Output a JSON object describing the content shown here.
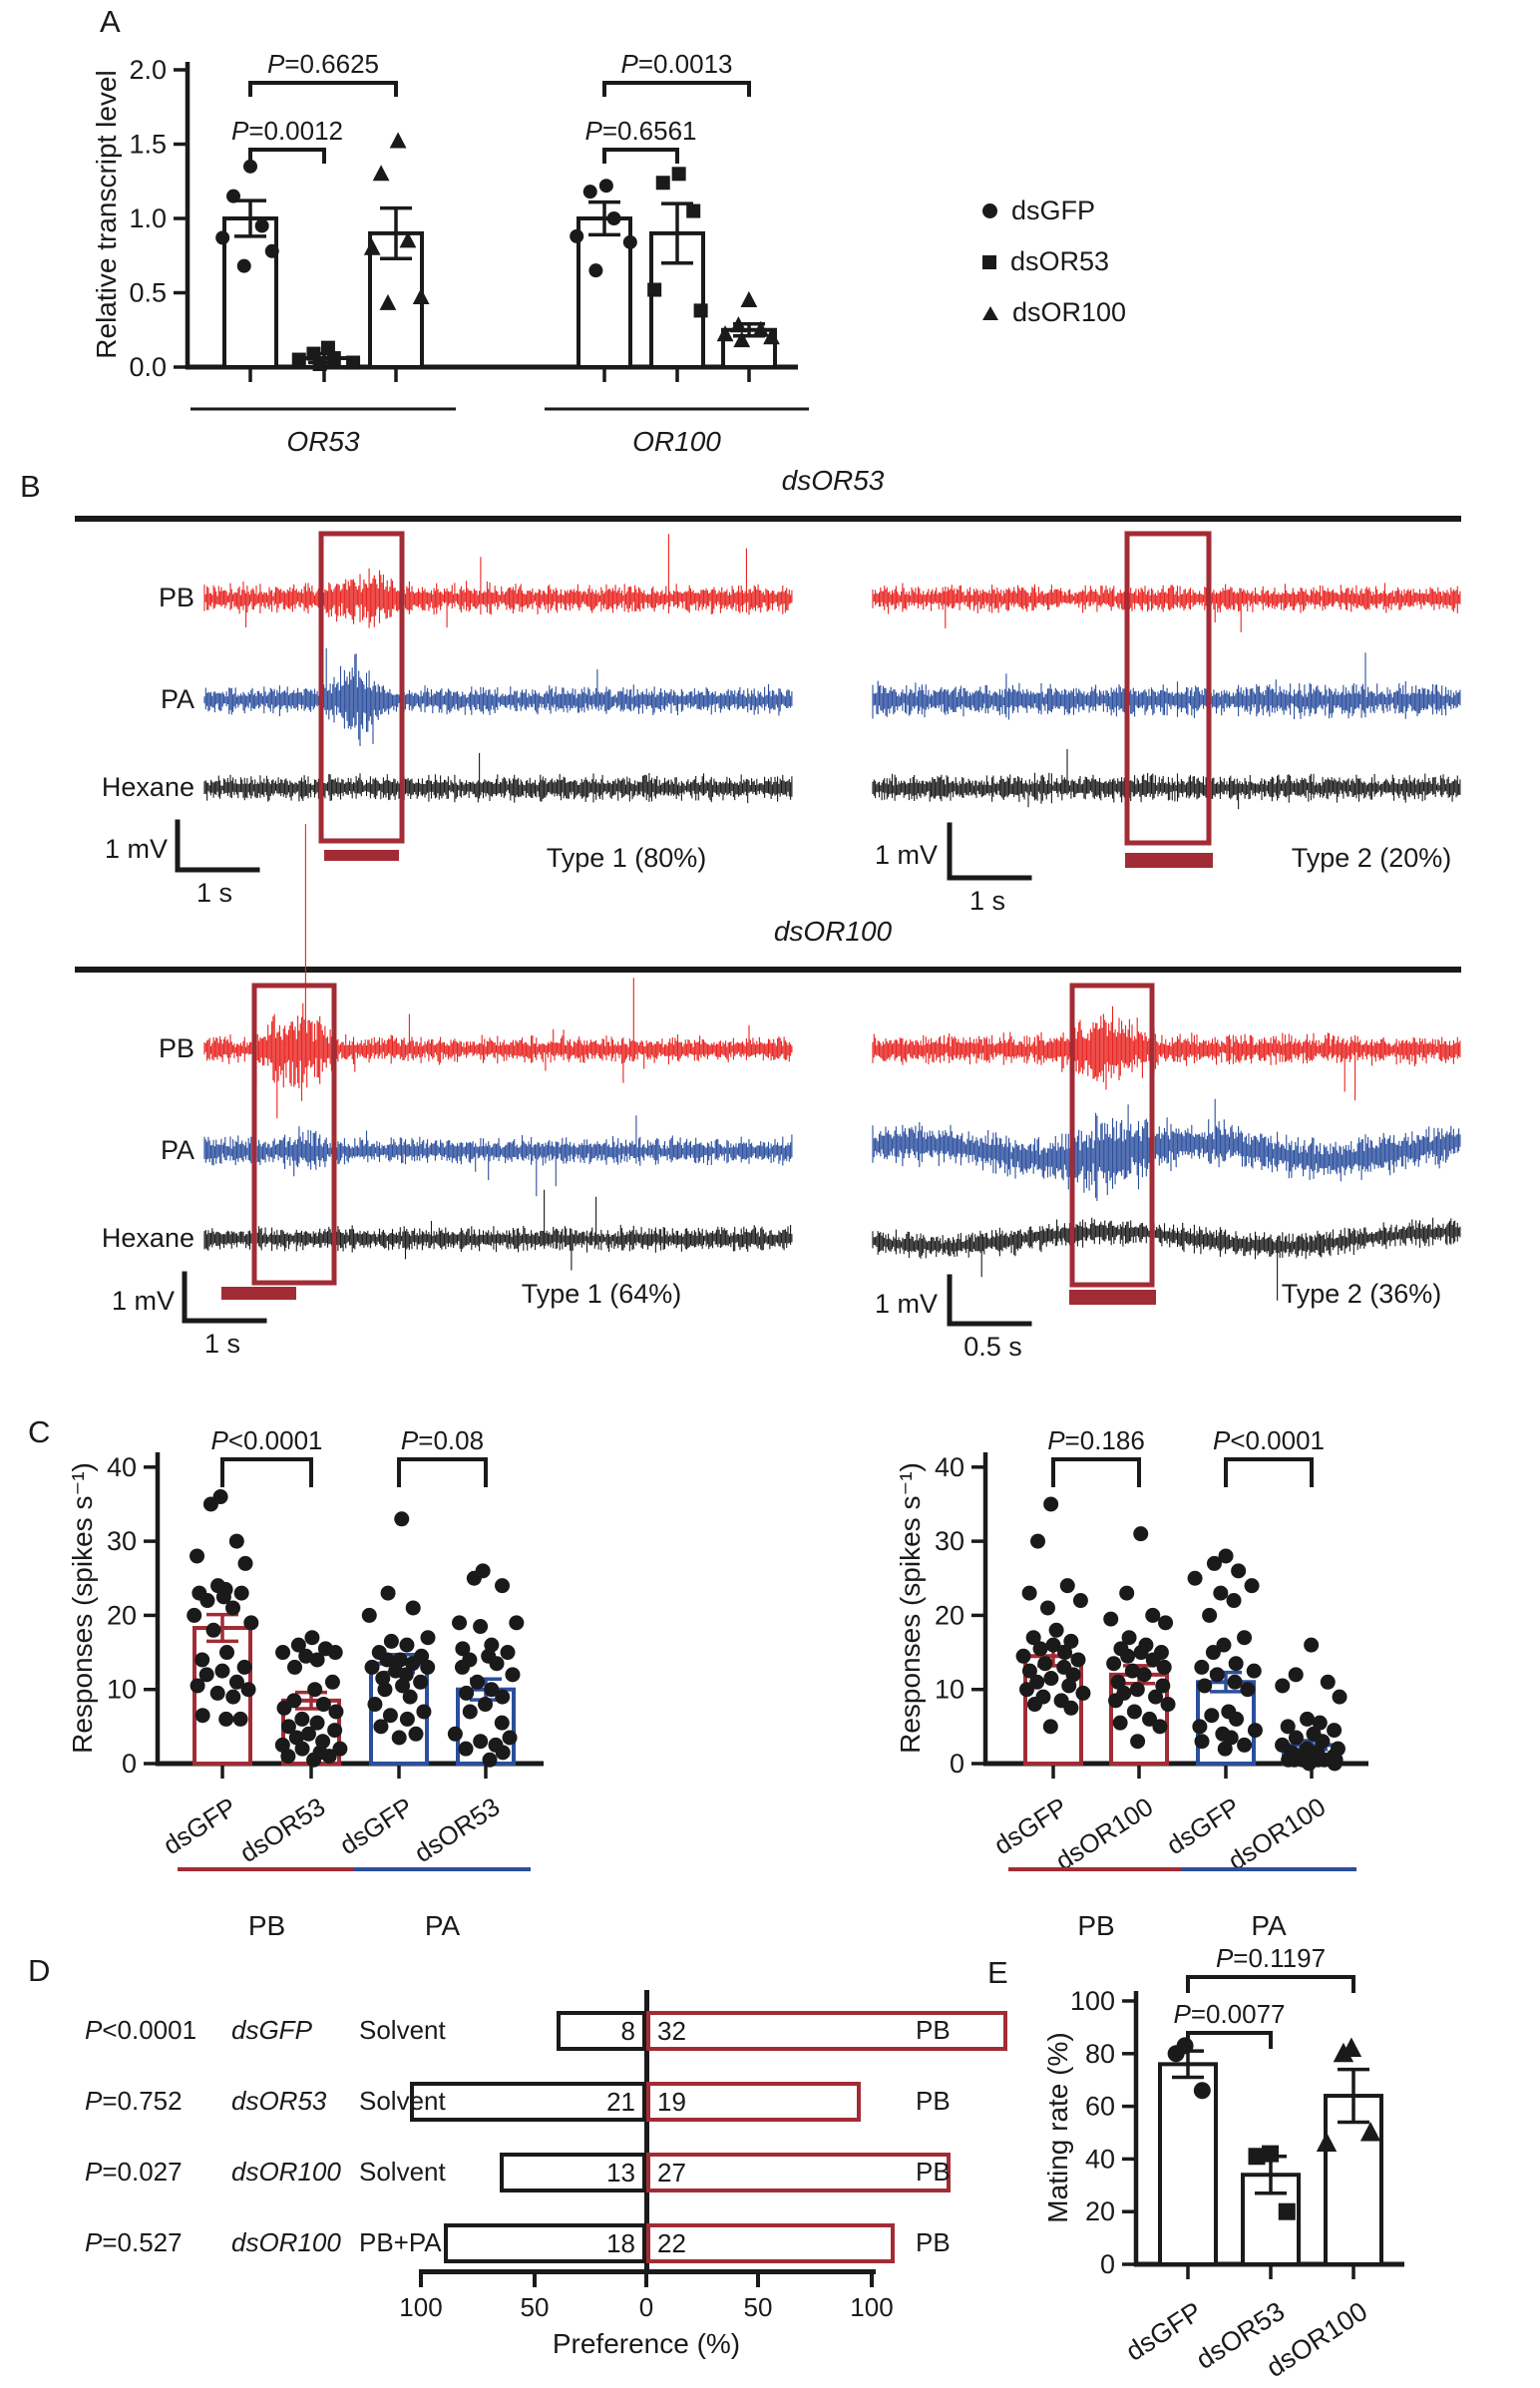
{
  "colors": {
    "dark_red": "#a22c35",
    "bright_red": "#e8231f",
    "blue": "#2b4f9e",
    "black": "#1a1a1a"
  },
  "panels": {
    "a": "A",
    "b": "B",
    "c": "C",
    "d": "D",
    "e": "E"
  },
  "legend": {
    "items": [
      {
        "marker": "circle",
        "label": "dsGFP"
      },
      {
        "marker": "square",
        "label": "dsOR53"
      },
      {
        "marker": "triangle",
        "label": "dsOR100"
      }
    ]
  },
  "panel_b": {
    "sections": [
      {
        "title": "dsOR53",
        "trace_labels": [
          "PB",
          "PA",
          "Hexane"
        ],
        "left": {
          "scale_v": "1 mV",
          "scale_h": "1 s",
          "caption": "Type 1 (80%)"
        },
        "right": {
          "scale_v": "1 mV",
          "scale_h": "1 s",
          "caption": "Type 2 (20%)"
        }
      },
      {
        "title": "dsOR100",
        "trace_labels": [
          "PB",
          "PA",
          "Hexane"
        ],
        "left": {
          "scale_v": "1 mV",
          "scale_h": "1 s",
          "caption": "Type 1 (64%)"
        },
        "right": {
          "scale_v": "1 mV",
          "scale_h": "0.5 s",
          "caption": "Type 2 (36%)"
        }
      }
    ]
  },
  "chart_data": [
    {
      "id": "panel_a",
      "type": "bar",
      "ylabel": "Relative transcript level",
      "ylim": [
        0,
        2.0
      ],
      "yticks": [
        "0.0",
        "0.5",
        "1.0",
        "1.5",
        "2.0"
      ],
      "xgroups": [
        {
          "label": "OR53",
          "bars": [
            0,
            2
          ]
        },
        {
          "label": "OR100",
          "bars": [
            3,
            5
          ]
        }
      ],
      "bars": [
        {
          "group": "OR53",
          "treatment": "dsGFP",
          "marker": "circle",
          "mean": 1.0,
          "sem": 0.12,
          "points": [
            1.35,
            1.15,
            0.95,
            0.87,
            0.78,
            0.68
          ]
        },
        {
          "group": "OR53",
          "treatment": "dsOR53",
          "marker": "square",
          "mean": 0.06,
          "sem": 0.03,
          "points": [
            0.13,
            0.09,
            0.06,
            0.05,
            0.03,
            0.02
          ]
        },
        {
          "group": "OR53",
          "treatment": "dsOR100",
          "marker": "triangle",
          "mean": 0.9,
          "sem": 0.17,
          "points": [
            1.52,
            1.3,
            0.85,
            0.8,
            0.47,
            0.43
          ]
        },
        {
          "group": "OR100",
          "treatment": "dsGFP",
          "marker": "circle",
          "mean": 1.0,
          "sem": 0.11,
          "points": [
            1.22,
            1.18,
            1.0,
            0.88,
            0.84,
            0.65
          ]
        },
        {
          "group": "OR100",
          "treatment": "dsOR53",
          "marker": "square",
          "mean": 0.9,
          "sem": 0.2,
          "points": [
            1.3,
            1.24,
            1.05,
            0.52,
            0.38
          ]
        },
        {
          "group": "OR100",
          "treatment": "dsOR100",
          "marker": "triangle",
          "mean": 0.25,
          "sem": 0.04,
          "points": [
            0.45,
            0.28,
            0.25,
            0.22,
            0.2,
            0.18
          ]
        }
      ],
      "pvalues": [
        {
          "label": "P=0.0012",
          "bars": [
            0,
            1
          ],
          "level": 1
        },
        {
          "label": "P=0.6625",
          "bars": [
            0,
            2
          ],
          "level": 2
        },
        {
          "label": "P=0.6561",
          "bars": [
            3,
            4
          ],
          "level": 1
        },
        {
          "label": "P=0.0013",
          "bars": [
            3,
            5
          ],
          "level": 2
        }
      ]
    },
    {
      "id": "panel_c_left",
      "type": "bar",
      "ylabel": "Responses (spikes s⁻¹)",
      "ylim": [
        0,
        40
      ],
      "yticks": [
        "0",
        "10",
        "20",
        "30",
        "40"
      ],
      "bars": [
        {
          "group": "PB",
          "treatment": "dsGFP",
          "marker": "circle",
          "mean": 18.3,
          "sem": 1.8,
          "points": [
            36,
            35,
            30,
            28,
            27,
            24,
            23.5,
            23,
            23,
            22.5,
            22,
            21,
            20,
            19,
            18,
            15,
            14,
            13,
            12.5,
            12,
            11,
            10.5,
            10,
            9.5,
            9,
            6.5,
            6,
            6
          ]
        },
        {
          "group": "PB",
          "treatment": "dsOR53",
          "marker": "circle",
          "mean": 8.5,
          "sem": 1.1,
          "points": [
            17,
            16,
            15.5,
            15,
            15,
            14.5,
            14,
            13,
            11,
            10,
            8.5,
            8,
            7.5,
            7,
            6,
            5.5,
            5,
            4.5,
            4,
            3.5,
            3,
            2.5,
            2,
            2,
            1.5,
            1,
            1,
            0.5
          ]
        },
        {
          "group": "PA",
          "treatment": "dsGFP",
          "marker": "circle",
          "mean": 13.5,
          "sem": 1.2,
          "points": [
            33,
            23,
            21,
            20,
            17,
            16.5,
            16,
            15,
            14.5,
            14,
            14,
            13.5,
            13,
            13,
            12.5,
            12,
            11.5,
            11,
            10.5,
            10,
            9,
            8,
            7,
            6.5,
            6,
            5,
            4,
            3.5
          ]
        },
        {
          "group": "PA",
          "treatment": "dsOR53",
          "marker": "circle",
          "mean": 10,
          "sem": 1.4,
          "points": [
            26,
            25,
            24,
            19,
            19,
            18.5,
            16,
            15.5,
            15,
            14.5,
            14,
            13.5,
            13,
            12,
            11,
            10,
            9.5,
            9,
            8,
            7,
            5.5,
            4,
            3.5,
            3,
            2.5,
            2,
            1.5,
            0.5
          ]
        }
      ],
      "pvalues": [
        {
          "label": "P<0.0001",
          "bars": [
            0,
            1
          ],
          "level": 1
        },
        {
          "label": "P=0.08",
          "bars": [
            2,
            3
          ],
          "level": 1
        }
      ],
      "group_lines": [
        {
          "label": "PB",
          "color": "dark_red",
          "bars": [
            0,
            1
          ]
        },
        {
          "label": "PA",
          "color": "blue",
          "bars": [
            2,
            3
          ]
        }
      ]
    },
    {
      "id": "panel_c_right",
      "type": "bar",
      "ylabel": "Responses (spikes s⁻¹)",
      "ylim": [
        0,
        40
      ],
      "yticks": [
        "0",
        "10",
        "20",
        "30",
        "40"
      ],
      "bars": [
        {
          "group": "PB",
          "treatment": "dsGFP",
          "marker": "circle",
          "mean": 14.5,
          "sem": 1.3,
          "points": [
            35,
            30,
            24,
            23,
            22,
            21,
            18,
            17,
            16.5,
            16,
            15.5,
            15,
            14.5,
            14,
            13.5,
            13,
            12.5,
            12,
            11.5,
            11,
            10.5,
            10,
            9.5,
            9,
            8.5,
            8,
            7.5,
            5
          ]
        },
        {
          "group": "PB",
          "treatment": "dsOR100",
          "marker": "circle",
          "mean": 12,
          "sem": 1.2,
          "points": [
            31,
            23,
            20,
            19.5,
            19,
            17,
            16,
            15.5,
            15,
            15,
            14.5,
            14,
            13.5,
            13,
            12.5,
            12,
            11,
            10.5,
            10,
            9.5,
            9,
            8.5,
            8,
            7,
            6,
            5.5,
            5,
            3
          ]
        },
        {
          "group": "PA",
          "treatment": "dsGFP",
          "marker": "circle",
          "mean": 11,
          "sem": 1.3,
          "points": [
            28,
            27,
            26,
            25,
            24,
            23,
            22,
            20,
            17,
            16,
            15,
            13.5,
            13,
            12.5,
            12,
            11,
            10.5,
            10,
            7,
            6.5,
            6,
            5,
            4.5,
            4,
            3.5,
            3,
            2.5,
            2
          ]
        },
        {
          "group": "PA",
          "treatment": "dsOR100",
          "marker": "circle",
          "mean": 2.5,
          "sem": 0.6,
          "points": [
            16,
            12,
            11,
            10.5,
            9,
            6,
            5.5,
            5,
            4.5,
            4,
            3.5,
            3,
            2.5,
            2,
            2,
            1.5,
            1.5,
            1,
            1,
            1,
            0.5,
            0.5,
            0.5,
            0.5,
            0.5,
            0.5,
            0,
            0
          ]
        }
      ],
      "pvalues": [
        {
          "label": "P=0.186",
          "bars": [
            0,
            1
          ],
          "level": 1
        },
        {
          "label": "P<0.0001",
          "bars": [
            2,
            3
          ],
          "level": 1
        }
      ],
      "group_lines": [
        {
          "label": "PB",
          "color": "dark_red",
          "bars": [
            0,
            1
          ]
        },
        {
          "label": "PA",
          "color": "blue",
          "bars": [
            2,
            3
          ]
        }
      ]
    },
    {
      "id": "panel_d",
      "type": "diverging_bar",
      "xlabel": "Preference (%)",
      "xticks": [
        "100",
        "50",
        "0",
        "50",
        "100"
      ],
      "rows": [
        {
          "p": "P<0.0001",
          "treatment": "dsGFP",
          "option": "Solvent",
          "left_count": 8,
          "right_count": 32,
          "right_option": "PB"
        },
        {
          "p": "P=0.752",
          "treatment": "dsOR53",
          "option": "Solvent",
          "left_count": 21,
          "right_count": 19,
          "right_option": "PB"
        },
        {
          "p": "P=0.027",
          "treatment": "dsOR100",
          "option": "Solvent",
          "left_count": 13,
          "right_count": 27,
          "right_option": "PB"
        },
        {
          "p": "P=0.527",
          "treatment": "dsOR100",
          "option": "PB+PA",
          "left_count": 18,
          "right_count": 22,
          "right_option": "PB"
        }
      ]
    },
    {
      "id": "panel_e",
      "type": "bar",
      "ylabel": "Mating rate (%)",
      "ylim": [
        0,
        100
      ],
      "yticks": [
        "0",
        "20",
        "40",
        "60",
        "80",
        "100"
      ],
      "bars": [
        {
          "label": "dsGFP",
          "marker": "circle",
          "mean": 76,
          "sem": 5,
          "points": [
            83,
            80,
            66
          ]
        },
        {
          "label": "dsOR53",
          "marker": "square",
          "mean": 34,
          "sem": 7,
          "points": [
            42,
            41,
            20
          ]
        },
        {
          "label": "dsOR100",
          "marker": "triangle",
          "mean": 64,
          "sem": 10,
          "points": [
            80,
            82,
            50,
            46
          ]
        }
      ],
      "pvalues": [
        {
          "label": "P=0.0077",
          "bars": [
            0,
            1
          ],
          "level": 1
        },
        {
          "label": "P=0.1197",
          "bars": [
            0,
            2
          ],
          "level": 2
        }
      ]
    }
  ]
}
